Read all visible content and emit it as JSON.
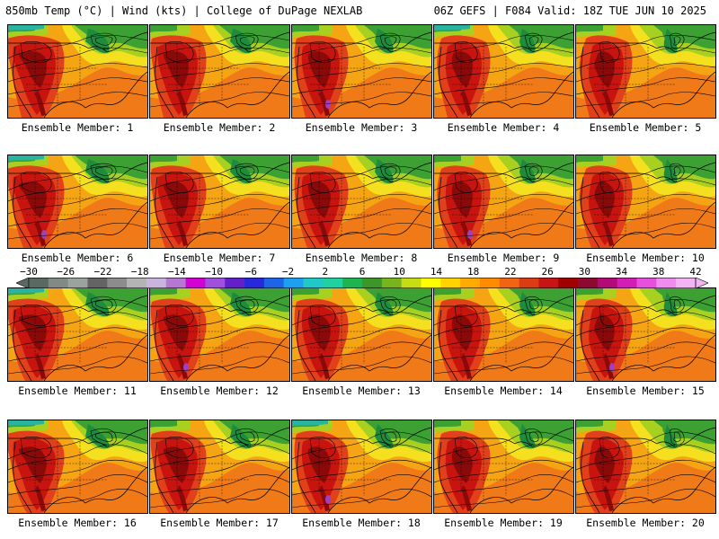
{
  "header": {
    "left": "850mb Temp (°C) | Wind (kts) | College of DuPage NEXLAB",
    "right": "06Z GEFS | F084 Valid: 18Z TUE JUN 10 2025"
  },
  "panels": [
    {
      "caption": "Ensemble Member: 1"
    },
    {
      "caption": "Ensemble Member: 2"
    },
    {
      "caption": "Ensemble Member: 3"
    },
    {
      "caption": "Ensemble Member: 4"
    },
    {
      "caption": "Ensemble Member: 5"
    },
    {
      "caption": "Ensemble Member: 6"
    },
    {
      "caption": "Ensemble Member: 7"
    },
    {
      "caption": "Ensemble Member: 8"
    },
    {
      "caption": "Ensemble Member: 9"
    },
    {
      "caption": "Ensemble Member: 10"
    },
    {
      "caption": "Ensemble Member: 11"
    },
    {
      "caption": "Ensemble Member: 12"
    },
    {
      "caption": "Ensemble Member: 13"
    },
    {
      "caption": "Ensemble Member: 14"
    },
    {
      "caption": "Ensemble Member: 15"
    },
    {
      "caption": "Ensemble Member: 16"
    },
    {
      "caption": "Ensemble Member: 17"
    },
    {
      "caption": "Ensemble Member: 18"
    },
    {
      "caption": "Ensemble Member: 19"
    },
    {
      "caption": "Ensemble Member: 20"
    }
  ],
  "colorbar": {
    "ticks": [
      "-30",
      "-26",
      "-22",
      "-18",
      "-14",
      "-10",
      "-6",
      "-2",
      "2",
      "6",
      "10",
      "14",
      "18",
      "22",
      "26",
      "30",
      "34",
      "38",
      "42"
    ],
    "colors": [
      "#5a6a62",
      "#828a86",
      "#9aa39e",
      "#646464",
      "#8c8c8c",
      "#b4b4b4",
      "#c8b4dc",
      "#b478d2",
      "#d200d2",
      "#a050dc",
      "#6420c8",
      "#2828dc",
      "#1e64e6",
      "#1ea0f0",
      "#20c8c8",
      "#20d2a0",
      "#20b450",
      "#3c9628",
      "#78b41e",
      "#c8dc14",
      "#ffff00",
      "#ffd200",
      "#ffaa00",
      "#ff8c00",
      "#f06414",
      "#dc3c14",
      "#c81414",
      "#a00000",
      "#8c0a32",
      "#b40a78",
      "#d21eb4",
      "#e650dc",
      "#f08cf0",
      "#f4b4f4"
    ]
  },
  "map_colors": {
    "hot_dark": "#8a0a0a",
    "hot": "#c8140f",
    "warm": "#e0401a",
    "orange": "#f07a18",
    "amber": "#f5a514",
    "yellow": "#f5e020",
    "lime": "#a8d020",
    "green": "#3ca032",
    "deep_green": "#1e8c3c",
    "teal": "#28b4a0",
    "purple": "#a040c0"
  }
}
